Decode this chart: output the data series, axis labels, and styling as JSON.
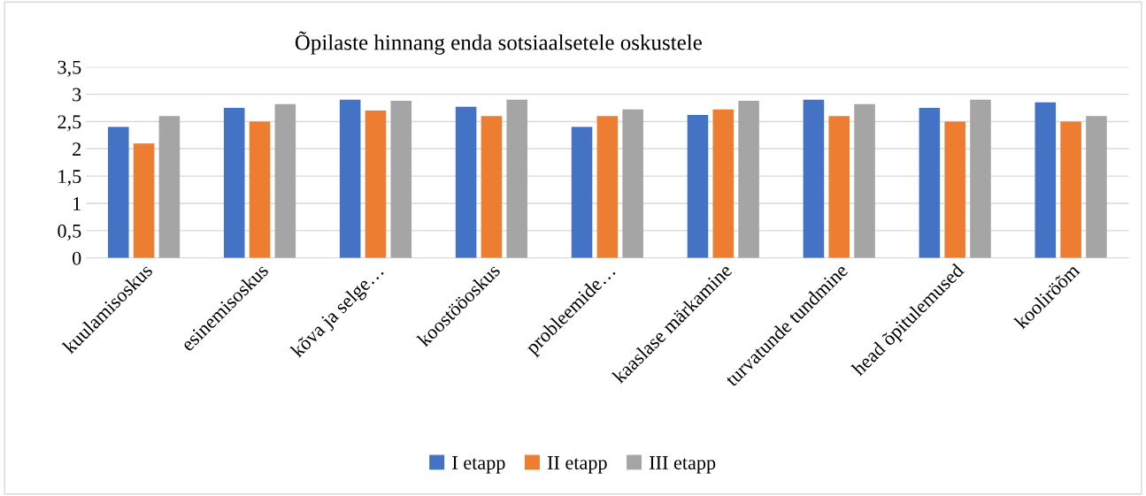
{
  "chart_data": {
    "type": "bar",
    "title": "Õpilaste hinnang enda sotsiaalsetele oskustele",
    "categories": [
      "kuulamisoskus",
      "esinemisoskus",
      "kõva ja selge…",
      "koostööoskus",
      "probleemide…",
      "kaaslase märkamine",
      "turvatunde tundmine",
      "head õpitulemused",
      "kooliröõm"
    ],
    "series": [
      {
        "name": "I etapp",
        "color": "#4472c4",
        "values": [
          2.4,
          2.75,
          2.9,
          2.77,
          2.4,
          2.62,
          2.9,
          2.75,
          2.85
        ]
      },
      {
        "name": "II etapp",
        "color": "#ed7d31",
        "values": [
          2.1,
          2.5,
          2.7,
          2.6,
          2.6,
          2.72,
          2.6,
          2.5,
          2.5
        ]
      },
      {
        "name": "III etapp",
        "color": "#a5a5a5",
        "values": [
          2.6,
          2.82,
          2.88,
          2.9,
          2.72,
          2.88,
          2.82,
          2.9,
          2.6
        ]
      }
    ],
    "ylim": [
      0,
      3.5
    ],
    "yticks": [
      0,
      {
        "value": 0.5,
        "label": "0,5"
      },
      1,
      {
        "value": 1.5,
        "label": "1,5"
      },
      2,
      {
        "value": 2.5,
        "label": "2,5"
      },
      3,
      {
        "value": 3.5,
        "label": "3,5"
      }
    ],
    "grid": "y",
    "legend": "bottom"
  }
}
